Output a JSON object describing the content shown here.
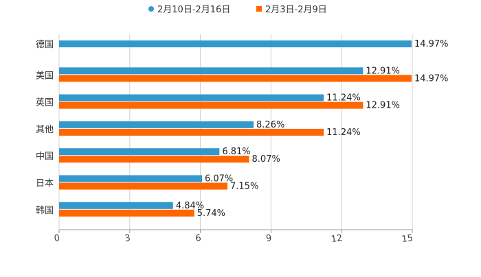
{
  "chart_data": {
    "type": "bar",
    "orientation": "horizontal",
    "categories": [
      "德国",
      "美国",
      "英国",
      "其他",
      "中国",
      "日本",
      "韩国"
    ],
    "series": [
      {
        "name": "2月10日-2月16日",
        "color": "#3399cc",
        "marker": "circle",
        "values": [
          14.97,
          12.91,
          11.24,
          8.26,
          6.81,
          6.07,
          4.84
        ],
        "labels": [
          "14.97%",
          "12.91%",
          "11.24%",
          "8.26%",
          "6.81%",
          "6.07%",
          "4.84%"
        ]
      },
      {
        "name": "2月3日-2月9日",
        "color": "#ff6600",
        "marker": "square",
        "values": [
          null,
          14.97,
          12.91,
          11.24,
          8.07,
          7.15,
          5.74
        ],
        "labels": [
          null,
          "14.97%",
          "12.91%",
          "11.24%",
          "8.07%",
          "7.15%",
          "5.74%"
        ]
      }
    ],
    "xlim": [
      0,
      15
    ],
    "xticks": [
      "0",
      "3",
      "6",
      "9",
      "12",
      "15"
    ],
    "xtick_values": [
      0,
      3,
      6,
      9,
      12,
      15
    ],
    "grid": true,
    "legend": "top-center",
    "title": "",
    "xlabel": "",
    "ylabel": ""
  }
}
